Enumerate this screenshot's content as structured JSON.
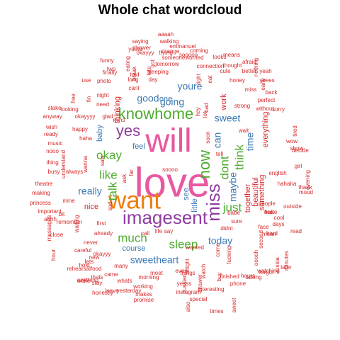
{
  "chart_data": {
    "type": "wordcloud",
    "title": "Whole chat wordcloud",
    "palette": {
      "red": "#d62728",
      "blue": "#3a79b4",
      "green": "#4dab2f",
      "purple": "#8f3da0",
      "orange": "#f07d0f",
      "pink": "#e8589f"
    },
    "words": [
      {
        "text": "love",
        "size": 10,
        "color": "pink"
      },
      {
        "text": "will",
        "size": 9,
        "color": "pink"
      },
      {
        "text": "want",
        "size": 7,
        "color": "orange"
      },
      {
        "text": "imagesent",
        "size": 6,
        "color": "purple"
      },
      {
        "text": "miss",
        "size": 6,
        "color": "purple"
      },
      {
        "text": "now",
        "size": 5,
        "color": "green"
      },
      {
        "text": "yes",
        "size": 5,
        "color": "purple"
      },
      {
        "text": "knowhome",
        "size": 5,
        "color": "green"
      },
      {
        "text": "okay",
        "size": 4,
        "color": "green"
      },
      {
        "text": "like",
        "size": 4,
        "color": "green"
      },
      {
        "text": "talk",
        "size": 4,
        "color": "green"
      },
      {
        "text": "dont",
        "size": 4,
        "color": "green"
      },
      {
        "text": "think",
        "size": 4,
        "color": "green"
      },
      {
        "text": "just",
        "size": 4,
        "color": "green"
      },
      {
        "text": "much",
        "size": 4,
        "color": "green"
      },
      {
        "text": "sleep",
        "size": 4,
        "color": "green"
      },
      {
        "text": "going",
        "size": 3,
        "color": "blue"
      },
      {
        "text": "youre",
        "size": 3,
        "color": "blue"
      },
      {
        "text": "good",
        "size": 3,
        "color": "blue"
      },
      {
        "text": "sweetheart",
        "size": 3,
        "color": "blue"
      },
      {
        "text": "really",
        "size": 3,
        "color": "blue"
      },
      {
        "text": "can",
        "size": 3,
        "color": "blue"
      },
      {
        "text": "maybe",
        "size": 3,
        "color": "blue"
      },
      {
        "text": "time",
        "size": 3,
        "color": "blue"
      },
      {
        "text": "sweet",
        "size": 3,
        "color": "blue"
      },
      {
        "text": "today",
        "size": 3,
        "color": "blue"
      },
      {
        "text": "one",
        "size": 2,
        "color": "blue"
      },
      {
        "text": "feel",
        "size": 2,
        "color": "blue"
      },
      {
        "text": "see",
        "size": 2,
        "color": "blue"
      },
      {
        "text": "baby",
        "size": 2,
        "color": "blue"
      },
      {
        "text": "course",
        "size": 2,
        "color": "blue"
      },
      {
        "text": "little",
        "size": 2,
        "color": "blue"
      },
      {
        "text": "everything",
        "size": 2,
        "color": "red"
      },
      {
        "text": "beautiful",
        "size": 2,
        "color": "red"
      },
      {
        "text": "together",
        "size": 2,
        "color": "red"
      },
      {
        "text": "thinking",
        "size": 2,
        "color": "red"
      },
      {
        "text": "nice",
        "size": 2,
        "color": "red"
      },
      {
        "text": "something",
        "size": 2,
        "color": "red"
      },
      {
        "text": "work",
        "size": 2,
        "color": "red"
      },
      {
        "text": "sleeping",
        "size": 1,
        "color": "red"
      },
      {
        "text": "tomorrow",
        "size": 1,
        "color": "red"
      },
      {
        "text": "long",
        "size": 1,
        "color": "red"
      },
      {
        "text": "cant",
        "size": 1,
        "color": "red"
      },
      {
        "text": "day",
        "size": 1,
        "color": "red"
      },
      {
        "text": "right",
        "size": 1,
        "color": "red"
      },
      {
        "text": "eat",
        "size": 1,
        "color": "red"
      },
      {
        "text": "soon",
        "size": 1,
        "color": "red"
      },
      {
        "text": "tell",
        "size": 1,
        "color": "red"
      },
      {
        "text": "wait",
        "size": 1,
        "color": "red"
      },
      {
        "text": "night",
        "size": 1,
        "color": "red"
      },
      {
        "text": "mins",
        "size": 1,
        "color": "red"
      },
      {
        "text": "need",
        "size": 1,
        "color": "red"
      },
      {
        "text": "haha",
        "size": 1,
        "color": "red"
      },
      {
        "text": "happy",
        "size": 1,
        "color": "red"
      },
      {
        "text": "understand",
        "size": 1,
        "color": "red"
      },
      {
        "text": "always",
        "size": 1,
        "color": "red"
      },
      {
        "text": "mine",
        "size": 1,
        "color": "red"
      },
      {
        "text": "waiting",
        "size": 1,
        "color": "red"
      },
      {
        "text": "already",
        "size": 1,
        "color": "red"
      },
      {
        "text": "never",
        "size": 1,
        "color": "red"
      },
      {
        "text": "okayyy",
        "size": 1,
        "color": "red"
      },
      {
        "text": "morning",
        "size": 1,
        "color": "red"
      },
      {
        "text": "working",
        "size": 1,
        "color": "red"
      },
      {
        "text": "even",
        "size": 1,
        "color": "red"
      },
      {
        "text": "things",
        "size": 1,
        "color": "red"
      },
      {
        "text": "come",
        "size": 1,
        "color": "red"
      },
      {
        "text": "didnt",
        "size": 1,
        "color": "red"
      },
      {
        "text": "sure",
        "size": 1,
        "color": "red"
      },
      {
        "text": "babe",
        "size": 1,
        "color": "red"
      },
      {
        "text": "call",
        "size": 1,
        "color": "red"
      },
      {
        "text": "life",
        "size": 1,
        "color": "red"
      },
      {
        "text": "say",
        "size": 1,
        "color": "red"
      },
      {
        "text": "saying",
        "size": 1,
        "color": "red"
      },
      {
        "text": "walking",
        "size": 1,
        "color": "red"
      },
      {
        "text": "aaaah",
        "size": 1,
        "color": "red"
      },
      {
        "text": "emmanuel",
        "size": 1,
        "color": "red"
      },
      {
        "text": "coming",
        "size": 1,
        "color": "red"
      },
      {
        "text": "someoneworried",
        "size": 1,
        "color": "red"
      },
      {
        "text": "sooooo",
        "size": 1,
        "color": "red"
      },
      {
        "text": "looks",
        "size": 1,
        "color": "red"
      },
      {
        "text": "means",
        "size": 1,
        "color": "red"
      },
      {
        "text": "trying",
        "size": 1,
        "color": "red"
      },
      {
        "text": "connection",
        "size": 1,
        "color": "red"
      },
      {
        "text": "thought",
        "size": 1,
        "color": "red"
      },
      {
        "text": "afraid",
        "size": 1,
        "color": "red"
      },
      {
        "text": "funny",
        "size": 1,
        "color": "red"
      },
      {
        "text": "eating",
        "size": 1,
        "color": "red"
      },
      {
        "text": "okayyy",
        "size": 1,
        "color": "red"
      },
      {
        "text": "shower",
        "size": 1,
        "color": "red"
      },
      {
        "text": "youtu",
        "size": 1,
        "color": "red"
      },
      {
        "text": "two",
        "size": 1,
        "color": "red"
      },
      {
        "text": "got",
        "size": 1,
        "color": "red"
      },
      {
        "text": "break",
        "size": 1,
        "color": "red"
      },
      {
        "text": "late",
        "size": 1,
        "color": "red"
      },
      {
        "text": "cute",
        "size": 1,
        "color": "red"
      },
      {
        "text": "better",
        "size": 1,
        "color": "red"
      },
      {
        "text": "nothing",
        "size": 1,
        "color": "red"
      },
      {
        "text": "early",
        "size": 1,
        "color": "red"
      },
      {
        "text": "yeah",
        "size": 1,
        "color": "red"
      },
      {
        "text": "finally",
        "size": 1,
        "color": "red"
      },
      {
        "text": "use",
        "size": 1,
        "color": "red"
      },
      {
        "text": "told",
        "size": 1,
        "color": "red"
      },
      {
        "text": "photo",
        "size": 1,
        "color": "red"
      },
      {
        "text": "free",
        "size": 1,
        "color": "red"
      },
      {
        "text": "fin",
        "size": 1,
        "color": "red"
      },
      {
        "text": "honey",
        "size": 1,
        "color": "red"
      },
      {
        "text": "miss",
        "size": 1,
        "color": "red"
      },
      {
        "text": "back",
        "size": 1,
        "color": "red"
      },
      {
        "text": "perfect",
        "size": 1,
        "color": "red"
      },
      {
        "text": "without",
        "size": 1,
        "color": "red"
      },
      {
        "text": "sorry",
        "size": 1,
        "color": "red"
      },
      {
        "text": "strong",
        "size": 1,
        "color": "red"
      },
      {
        "text": "yeees",
        "size": 1,
        "color": "red"
      },
      {
        "text": "stake",
        "size": 1,
        "color": "red"
      },
      {
        "text": "looking",
        "size": 1,
        "color": "red"
      },
      {
        "text": "okayyyy",
        "size": 1,
        "color": "red"
      },
      {
        "text": "anyway",
        "size": 1,
        "color": "red"
      },
      {
        "text": "wish",
        "size": 1,
        "color": "red"
      },
      {
        "text": "ready",
        "size": 1,
        "color": "red"
      },
      {
        "text": "music",
        "size": 1,
        "color": "red"
      },
      {
        "text": "nooo",
        "size": 1,
        "color": "red"
      },
      {
        "text": "thing",
        "size": 1,
        "color": "red"
      },
      {
        "text": "busy",
        "size": 1,
        "color": "red"
      },
      {
        "text": "theatre",
        "size": 1,
        "color": "red"
      },
      {
        "text": "making",
        "size": 1,
        "color": "red"
      },
      {
        "text": "princess",
        "size": 1,
        "color": "red"
      },
      {
        "text": "important",
        "size": 1,
        "color": "red"
      },
      {
        "text": "ahhh",
        "size": 1,
        "color": "red"
      },
      {
        "text": "messages",
        "size": 1,
        "color": "red"
      },
      {
        "text": "close",
        "size": 1,
        "color": "red"
      },
      {
        "text": "hour",
        "size": 1,
        "color": "red"
      },
      {
        "text": "rehearsalfood",
        "size": 1,
        "color": "red"
      },
      {
        "text": "anything",
        "size": 1,
        "color": "red"
      },
      {
        "text": "stay",
        "size": 1,
        "color": "red"
      },
      {
        "text": "honestly",
        "size": 1,
        "color": "red"
      },
      {
        "text": "whats",
        "size": 1,
        "color": "red"
      },
      {
        "text": "leave",
        "size": 1,
        "color": "red"
      },
      {
        "text": "yesterday",
        "size": 1,
        "color": "red"
      },
      {
        "text": "makes",
        "size": 1,
        "color": "red"
      },
      {
        "text": "promise",
        "size": 1,
        "color": "red"
      },
      {
        "text": "meet",
        "size": 1,
        "color": "red"
      },
      {
        "text": "instagram",
        "size": 1,
        "color": "red"
      },
      {
        "text": "special",
        "size": 1,
        "color": "red"
      },
      {
        "text": "interesting",
        "size": 1,
        "color": "red"
      },
      {
        "text": "times",
        "size": 1,
        "color": "red"
      },
      {
        "text": "hours",
        "size": 1,
        "color": "red"
      },
      {
        "text": "talking",
        "size": 1,
        "color": "red"
      },
      {
        "text": "watching",
        "size": 1,
        "color": "red"
      },
      {
        "text": "second",
        "size": 1,
        "color": "red"
      },
      {
        "text": "mean",
        "size": 1,
        "color": "red"
      },
      {
        "text": "wake",
        "size": 1,
        "color": "red"
      },
      {
        "text": "people",
        "size": 1,
        "color": "red"
      },
      {
        "text": "hahaha",
        "size": 1,
        "color": "red"
      },
      {
        "text": "girl",
        "size": 1,
        "color": "red"
      },
      {
        "text": "thank",
        "size": 1,
        "color": "red"
      },
      {
        "text": "outside",
        "size": 1,
        "color": "red"
      },
      {
        "text": "cool",
        "size": 1,
        "color": "red"
      },
      {
        "text": "wow",
        "size": 1,
        "color": "red"
      },
      {
        "text": "show",
        "size": 1,
        "color": "red"
      },
      {
        "text": "decide",
        "size": 1,
        "color": "red"
      },
      {
        "text": "english",
        "size": 1,
        "color": "red"
      },
      {
        "text": "tired",
        "size": 1,
        "color": "red"
      },
      {
        "text": "hold",
        "size": 1,
        "color": "red"
      },
      {
        "text": "many",
        "size": 1,
        "color": "red"
      },
      {
        "text": "lets",
        "size": 1,
        "color": "red"
      },
      {
        "text": "new",
        "size": 1,
        "color": "red"
      },
      {
        "text": "thats",
        "size": 1,
        "color": "red"
      },
      {
        "text": "woke",
        "size": 1,
        "color": "red"
      },
      {
        "text": "came",
        "size": 1,
        "color": "red"
      },
      {
        "text": "careful",
        "size": 1,
        "color": "red"
      },
      {
        "text": "remember",
        "size": 1,
        "color": "red"
      },
      {
        "text": "bit",
        "size": 1,
        "color": "red"
      },
      {
        "text": "sad",
        "size": 1,
        "color": "red"
      },
      {
        "text": "first",
        "size": 1,
        "color": "red"
      },
      {
        "text": "glad",
        "size": 1,
        "color": "red"
      },
      {
        "text": "alright",
        "size": 1,
        "color": "red"
      },
      {
        "text": "wanted",
        "size": 1,
        "color": "red"
      },
      {
        "text": "watch",
        "size": 1,
        "color": "red"
      },
      {
        "text": "russian",
        "size": 1,
        "color": "red"
      },
      {
        "text": "answer",
        "size": 1,
        "color": "red"
      },
      {
        "text": "ooooh",
        "size": 1,
        "color": "red"
      },
      {
        "text": "fucking",
        "size": 1,
        "color": "red"
      },
      {
        "text": "finished",
        "size": 1,
        "color": "red"
      },
      {
        "text": "phone",
        "size": 1,
        "color": "red"
      },
      {
        "text": "russia",
        "size": 1,
        "color": "red"
      },
      {
        "text": "later",
        "size": 1,
        "color": "red"
      },
      {
        "text": "forgot",
        "size": 1,
        "color": "red"
      },
      {
        "text": "minutes",
        "size": 1,
        "color": "red"
      },
      {
        "text": "evening",
        "size": 1,
        "color": "red"
      },
      {
        "text": "mood",
        "size": 1,
        "color": "red"
      },
      {
        "text": "read",
        "size": 1,
        "color": "red"
      },
      {
        "text": "find",
        "size": 1,
        "color": "red"
      },
      {
        "text": "face",
        "size": 1,
        "color": "red"
      },
      {
        "text": "hard",
        "size": 1,
        "color": "red"
      },
      {
        "text": "days",
        "size": 1,
        "color": "red"
      },
      {
        "text": "wanna",
        "size": 1,
        "color": "red"
      },
      {
        "text": "ask",
        "size": 1,
        "color": "red"
      },
      {
        "text": "far",
        "size": 1,
        "color": "red"
      },
      {
        "text": "saw",
        "size": 1,
        "color": "red"
      },
      {
        "text": "hey",
        "size": 1,
        "color": "red"
      },
      {
        "text": "bad",
        "size": 1,
        "color": "red"
      },
      {
        "text": "lot",
        "size": 1,
        "color": "red"
      },
      {
        "text": "also",
        "size": 1,
        "color": "red"
      },
      {
        "text": "buy",
        "size": 1,
        "color": "red"
      },
      {
        "text": "yesss",
        "size": 1,
        "color": "red"
      },
      {
        "text": "sweet",
        "size": 1,
        "color": "red"
      },
      {
        "text": "strange",
        "size": 1,
        "color": "red"
      },
      {
        "text": "soooo",
        "size": 1,
        "color": "red"
      }
    ]
  }
}
